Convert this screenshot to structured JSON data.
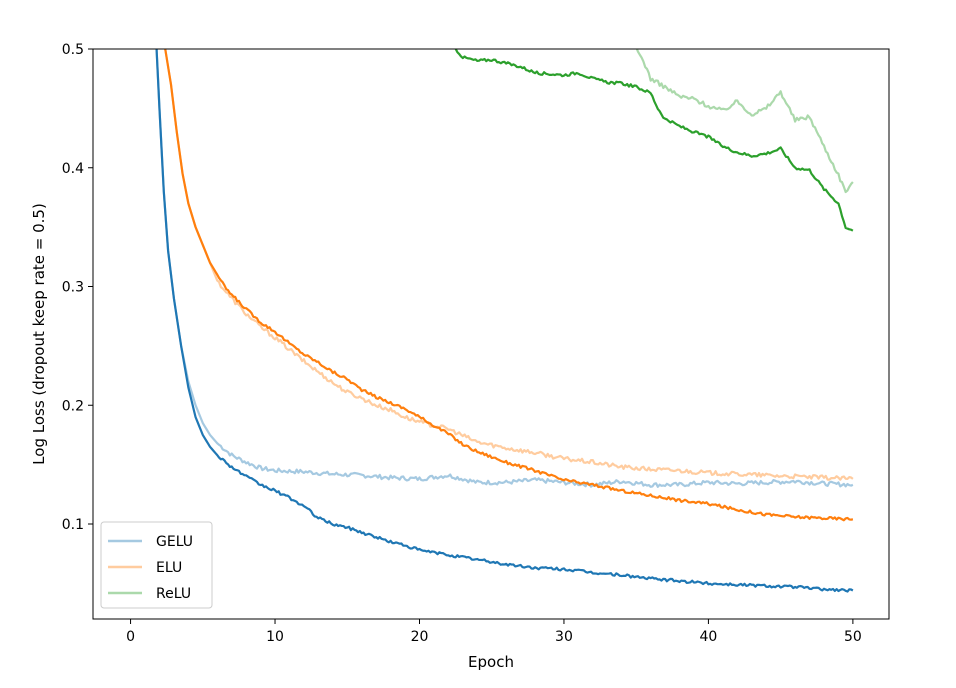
{
  "chart_data": {
    "type": "line",
    "title": "",
    "xlabel": "Epoch",
    "ylabel": "Log Loss (dropout keep rate = 0.5)",
    "xlim": [
      -2.6,
      52.5
    ],
    "ylim": [
      0.02,
      0.5
    ],
    "xticks": [
      0,
      10,
      20,
      30,
      40,
      50
    ],
    "yticks": [
      0.1,
      0.2,
      0.3,
      0.4,
      0.5
    ],
    "xtick_labels": [
      "0",
      "10",
      "20",
      "30",
      "40",
      "50"
    ],
    "ytick_labels": [
      "0.1",
      "0.2",
      "0.3",
      "0.4",
      "0.5"
    ],
    "grid": false,
    "legend": {
      "position": "lower-left",
      "entries": [
        "GELU",
        "ELU",
        "ReLU"
      ]
    },
    "series": [
      {
        "name": "GELU",
        "role": "train",
        "color": "#1f77b4",
        "opacity": 1.0,
        "points": [
          [
            1.8,
            0.5
          ],
          [
            2.0,
            0.45
          ],
          [
            2.3,
            0.38
          ],
          [
            2.6,
            0.33
          ],
          [
            3.0,
            0.29
          ],
          [
            3.5,
            0.25
          ],
          [
            4.0,
            0.215
          ],
          [
            4.5,
            0.19
          ],
          [
            5.0,
            0.175
          ],
          [
            5.5,
            0.165
          ],
          [
            6.0,
            0.158
          ],
          [
            7.0,
            0.148
          ],
          [
            8.0,
            0.14
          ],
          [
            9.0,
            0.133
          ],
          [
            10.0,
            0.128
          ],
          [
            11.0,
            0.122
          ],
          [
            12.0,
            0.115
          ],
          [
            13.0,
            0.105
          ],
          [
            14.0,
            0.1
          ],
          [
            15.0,
            0.097
          ],
          [
            16.0,
            0.093
          ],
          [
            17.0,
            0.089
          ],
          [
            18.0,
            0.085
          ],
          [
            19.0,
            0.082
          ],
          [
            20.0,
            0.078
          ],
          [
            22.0,
            0.074
          ],
          [
            24.0,
            0.07
          ],
          [
            26.0,
            0.066
          ],
          [
            28.0,
            0.063
          ],
          [
            30.0,
            0.062
          ],
          [
            32.0,
            0.059
          ],
          [
            34.0,
            0.057
          ],
          [
            36.0,
            0.054
          ],
          [
            38.0,
            0.052
          ],
          [
            40.0,
            0.05
          ],
          [
            42.0,
            0.049
          ],
          [
            44.0,
            0.048
          ],
          [
            46.0,
            0.047
          ],
          [
            48.0,
            0.045
          ],
          [
            50.0,
            0.044
          ]
        ]
      },
      {
        "name": "GELU",
        "role": "validation",
        "color": "#1f77b4",
        "opacity": 0.4,
        "points": [
          [
            1.8,
            0.5
          ],
          [
            2.0,
            0.45
          ],
          [
            2.3,
            0.38
          ],
          [
            2.6,
            0.33
          ],
          [
            3.0,
            0.29
          ],
          [
            3.5,
            0.25
          ],
          [
            4.0,
            0.22
          ],
          [
            4.5,
            0.2
          ],
          [
            5.0,
            0.185
          ],
          [
            5.5,
            0.175
          ],
          [
            6.0,
            0.168
          ],
          [
            7.0,
            0.158
          ],
          [
            8.0,
            0.152
          ],
          [
            9.0,
            0.147
          ],
          [
            10.0,
            0.145
          ],
          [
            12.0,
            0.144
          ],
          [
            14.0,
            0.142
          ],
          [
            16.0,
            0.141
          ],
          [
            18.0,
            0.139
          ],
          [
            20.0,
            0.138
          ],
          [
            22.0,
            0.141
          ],
          [
            24.0,
            0.135
          ],
          [
            26.0,
            0.135
          ],
          [
            28.0,
            0.137
          ],
          [
            30.0,
            0.135
          ],
          [
            32.0,
            0.133
          ],
          [
            34.0,
            0.136
          ],
          [
            36.0,
            0.133
          ],
          [
            38.0,
            0.133
          ],
          [
            40.0,
            0.135
          ],
          [
            42.0,
            0.134
          ],
          [
            44.0,
            0.135
          ],
          [
            46.0,
            0.136
          ],
          [
            48.0,
            0.134
          ],
          [
            50.0,
            0.133
          ]
        ]
      },
      {
        "name": "ELU",
        "role": "train",
        "color": "#ff7f0e",
        "opacity": 1.0,
        "points": [
          [
            2.4,
            0.5
          ],
          [
            2.8,
            0.47
          ],
          [
            3.2,
            0.43
          ],
          [
            3.6,
            0.395
          ],
          [
            4.0,
            0.37
          ],
          [
            4.5,
            0.35
          ],
          [
            5.0,
            0.335
          ],
          [
            5.5,
            0.32
          ],
          [
            6.0,
            0.31
          ],
          [
            6.5,
            0.3
          ],
          [
            7.0,
            0.293
          ],
          [
            8.0,
            0.281
          ],
          [
            9.0,
            0.27
          ],
          [
            10.0,
            0.262
          ],
          [
            11.0,
            0.252
          ],
          [
            12.0,
            0.243
          ],
          [
            13.0,
            0.236
          ],
          [
            14.0,
            0.228
          ],
          [
            15.0,
            0.222
          ],
          [
            16.0,
            0.213
          ],
          [
            17.0,
            0.207
          ],
          [
            18.0,
            0.202
          ],
          [
            19.0,
            0.197
          ],
          [
            20.0,
            0.19
          ],
          [
            21.0,
            0.183
          ],
          [
            22.0,
            0.176
          ],
          [
            23.0,
            0.167
          ],
          [
            24.0,
            0.161
          ],
          [
            26.0,
            0.152
          ],
          [
            28.0,
            0.145
          ],
          [
            30.0,
            0.137
          ],
          [
            32.0,
            0.133
          ],
          [
            34.0,
            0.128
          ],
          [
            36.0,
            0.124
          ],
          [
            38.0,
            0.12
          ],
          [
            40.0,
            0.117
          ],
          [
            42.0,
            0.112
          ],
          [
            44.0,
            0.108
          ],
          [
            46.0,
            0.106
          ],
          [
            48.0,
            0.105
          ],
          [
            50.0,
            0.104
          ]
        ]
      },
      {
        "name": "ELU",
        "role": "validation",
        "color": "#ff7f0e",
        "opacity": 0.4,
        "points": [
          [
            2.4,
            0.5
          ],
          [
            2.8,
            0.47
          ],
          [
            3.2,
            0.43
          ],
          [
            3.6,
            0.395
          ],
          [
            4.0,
            0.37
          ],
          [
            4.5,
            0.35
          ],
          [
            5.0,
            0.335
          ],
          [
            5.5,
            0.32
          ],
          [
            6.0,
            0.305
          ],
          [
            6.5,
            0.297
          ],
          [
            7.0,
            0.29
          ],
          [
            8.0,
            0.277
          ],
          [
            9.0,
            0.266
          ],
          [
            10.0,
            0.257
          ],
          [
            11.0,
            0.247
          ],
          [
            12.0,
            0.237
          ],
          [
            13.0,
            0.228
          ],
          [
            14.0,
            0.219
          ],
          [
            15.0,
            0.211
          ],
          [
            16.0,
            0.206
          ],
          [
            17.0,
            0.2
          ],
          [
            18.0,
            0.196
          ],
          [
            19.0,
            0.19
          ],
          [
            20.0,
            0.186
          ],
          [
            22.0,
            0.18
          ],
          [
            24.0,
            0.169
          ],
          [
            26.0,
            0.164
          ],
          [
            28.0,
            0.16
          ],
          [
            30.0,
            0.155
          ],
          [
            32.0,
            0.152
          ],
          [
            34.0,
            0.148
          ],
          [
            36.0,
            0.146
          ],
          [
            38.0,
            0.145
          ],
          [
            40.0,
            0.143
          ],
          [
            42.0,
            0.142
          ],
          [
            44.0,
            0.141
          ],
          [
            46.0,
            0.14
          ],
          [
            48.0,
            0.139
          ],
          [
            50.0,
            0.138
          ]
        ]
      },
      {
        "name": "ReLU",
        "role": "train",
        "color": "#2ca02c",
        "opacity": 1.0,
        "points": [
          [
            22.5,
            0.5
          ],
          [
            23.0,
            0.493
          ],
          [
            24.0,
            0.49
          ],
          [
            25.0,
            0.491
          ],
          [
            26.0,
            0.488
          ],
          [
            27.0,
            0.485
          ],
          [
            28.0,
            0.48
          ],
          [
            29.0,
            0.479
          ],
          [
            30.0,
            0.478
          ],
          [
            31.0,
            0.48
          ],
          [
            32.0,
            0.475
          ],
          [
            33.0,
            0.472
          ],
          [
            34.0,
            0.471
          ],
          [
            35.0,
            0.468
          ],
          [
            36.0,
            0.463
          ],
          [
            36.5,
            0.45
          ],
          [
            37.0,
            0.441
          ],
          [
            38.0,
            0.435
          ],
          [
            39.0,
            0.43
          ],
          [
            40.0,
            0.426
          ],
          [
            41.0,
            0.418
          ],
          [
            42.0,
            0.413
          ],
          [
            43.0,
            0.41
          ],
          [
            44.0,
            0.412
          ],
          [
            45.0,
            0.416
          ],
          [
            46.0,
            0.4
          ],
          [
            47.0,
            0.398
          ],
          [
            48.0,
            0.382
          ],
          [
            49.0,
            0.37
          ],
          [
            49.5,
            0.35
          ],
          [
            50.0,
            0.347
          ]
        ]
      },
      {
        "name": "ReLU",
        "role": "validation",
        "color": "#2ca02c",
        "opacity": 0.4,
        "points": [
          [
            35.0,
            0.5
          ],
          [
            35.5,
            0.49
          ],
          [
            36.0,
            0.475
          ],
          [
            37.0,
            0.468
          ],
          [
            38.0,
            0.46
          ],
          [
            39.0,
            0.458
          ],
          [
            40.0,
            0.452
          ],
          [
            41.0,
            0.448
          ],
          [
            42.0,
            0.456
          ],
          [
            43.0,
            0.445
          ],
          [
            44.0,
            0.45
          ],
          [
            45.0,
            0.464
          ],
          [
            46.0,
            0.44
          ],
          [
            47.0,
            0.443
          ],
          [
            48.0,
            0.418
          ],
          [
            49.0,
            0.394
          ],
          [
            49.5,
            0.38
          ],
          [
            50.0,
            0.388
          ]
        ]
      }
    ]
  }
}
